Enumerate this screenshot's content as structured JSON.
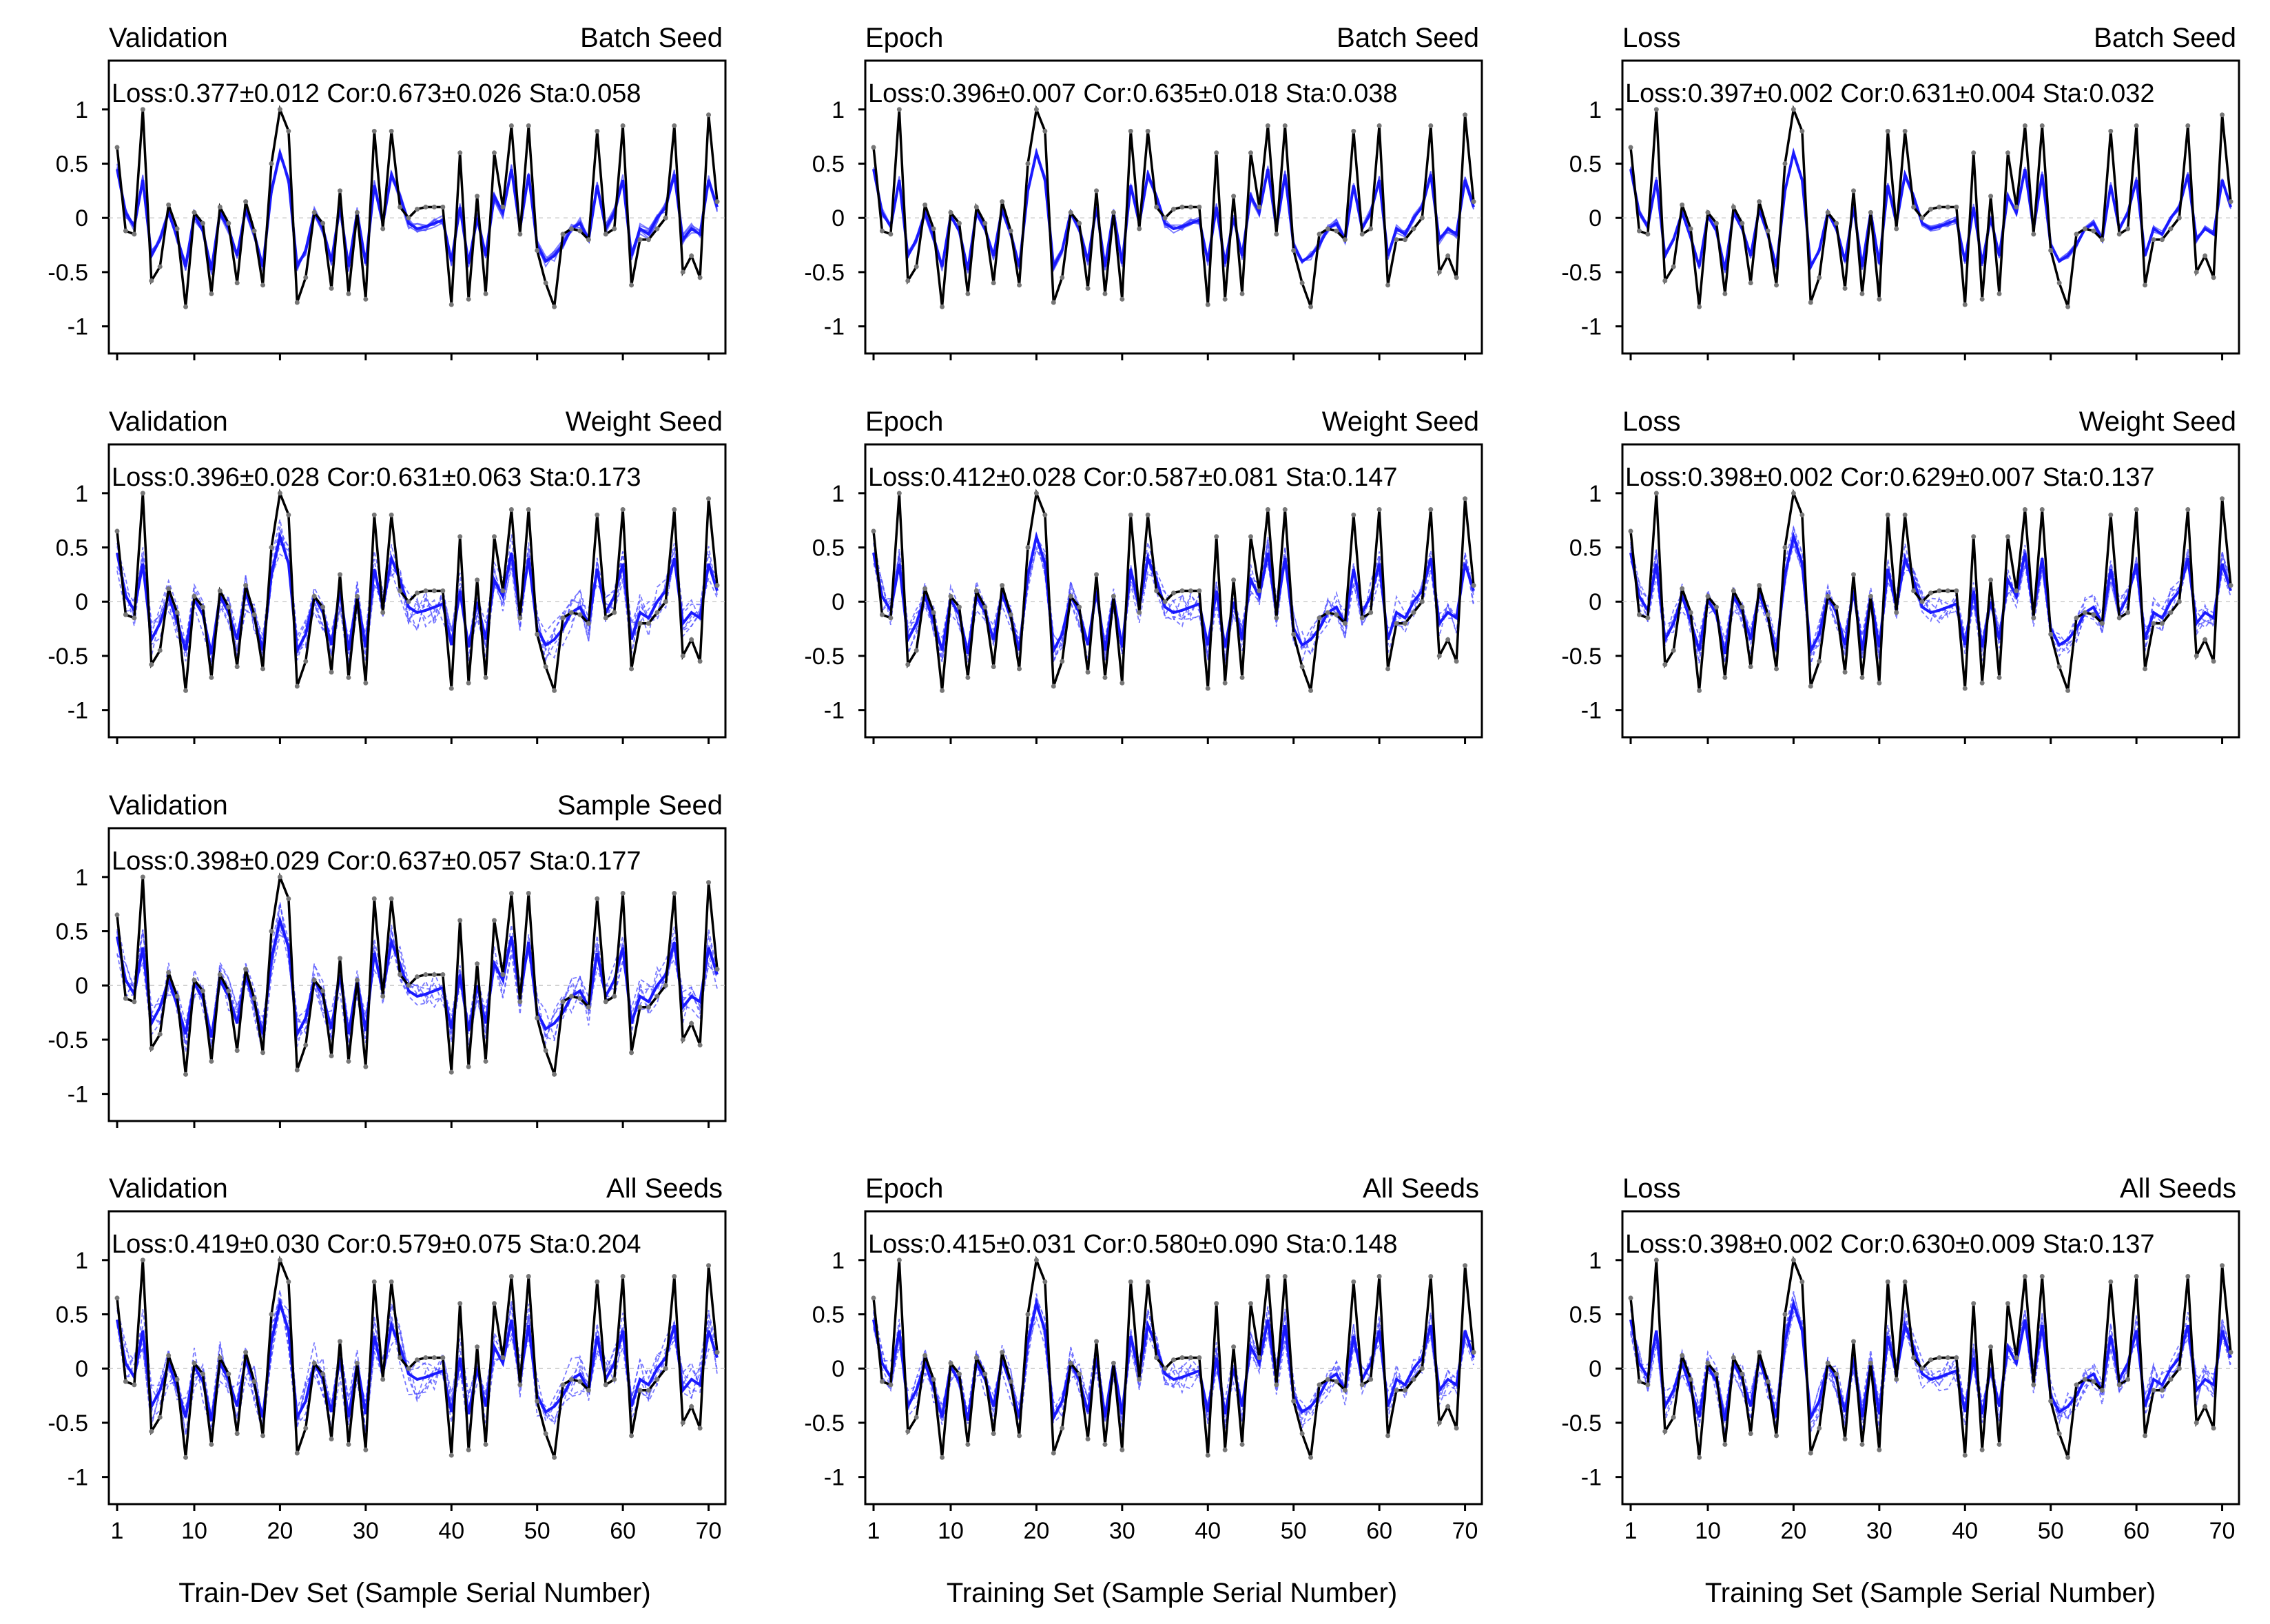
{
  "figure": {
    "xlabels": {
      "col0": "Train-Dev Set (Sample Serial Number)",
      "col1": "Training Set (Sample Serial Number)",
      "col2": "Training Set (Sample Serial Number)"
    }
  },
  "axes": {
    "x_ticks": [
      "1",
      "10",
      "20",
      "30",
      "40",
      "50",
      "60",
      "70"
    ],
    "y_ticks": [
      "1",
      "0.5",
      "0",
      "-0.5",
      "-1"
    ]
  },
  "colors": {
    "target": "#000000",
    "mean": "#1a1aff",
    "runs": "#4d4dff"
  },
  "chart_data": [
    {
      "type": "line",
      "row": 0,
      "col": 0,
      "title_left": "Validation",
      "title_right": "Batch Seed",
      "stats": "Loss:0.377±0.012 Cor:0.673±0.026 Sta:0.058",
      "spread": 0.05,
      "dashed_runs": false,
      "xlim": [
        1,
        71
      ],
      "ylim": [
        -1.25,
        1.45
      ]
    },
    {
      "type": "line",
      "row": 0,
      "col": 1,
      "title_left": "Epoch",
      "title_right": "Batch Seed",
      "stats": "Loss:0.396±0.007 Cor:0.635±0.018 Sta:0.038",
      "spread": 0.04,
      "dashed_runs": false,
      "xlim": [
        1,
        71
      ],
      "ylim": [
        -1.25,
        1.45
      ]
    },
    {
      "type": "line",
      "row": 0,
      "col": 2,
      "title_left": "Loss",
      "title_right": "Batch Seed",
      "stats": "Loss:0.397±0.002 Cor:0.631±0.004 Sta:0.032",
      "spread": 0.03,
      "dashed_runs": false,
      "xlim": [
        1,
        71
      ],
      "ylim": [
        -1.25,
        1.45
      ]
    },
    {
      "type": "line",
      "row": 1,
      "col": 0,
      "title_left": "Validation",
      "title_right": "Weight Seed",
      "stats": "Loss:0.396±0.028 Cor:0.631±0.063 Sta:0.173",
      "spread": 0.17,
      "dashed_runs": true,
      "xlim": [
        1,
        71
      ],
      "ylim": [
        -1.25,
        1.45
      ]
    },
    {
      "type": "line",
      "row": 1,
      "col": 1,
      "title_left": "Epoch",
      "title_right": "Weight Seed",
      "stats": "Loss:0.412±0.028 Cor:0.587±0.081 Sta:0.147",
      "spread": 0.15,
      "dashed_runs": true,
      "xlim": [
        1,
        71
      ],
      "ylim": [
        -1.25,
        1.45
      ]
    },
    {
      "type": "line",
      "row": 1,
      "col": 2,
      "title_left": "Loss",
      "title_right": "Weight Seed",
      "stats": "Loss:0.398±0.002 Cor:0.629±0.007 Sta:0.137",
      "spread": 0.14,
      "dashed_runs": true,
      "xlim": [
        1,
        71
      ],
      "ylim": [
        -1.25,
        1.45
      ]
    },
    {
      "type": "line",
      "row": 2,
      "col": 0,
      "title_left": "Validation",
      "title_right": "Sample Seed",
      "stats": "Loss:0.398±0.029 Cor:0.637±0.057 Sta:0.177",
      "spread": 0.17,
      "dashed_runs": true,
      "xlim": [
        1,
        71
      ],
      "ylim": [
        -1.25,
        1.45
      ]
    },
    {
      "type": "line",
      "row": 3,
      "col": 0,
      "title_left": "Validation",
      "title_right": "All Seeds",
      "stats": "Loss:0.419±0.030 Cor:0.579±0.075 Sta:0.204",
      "spread": 0.2,
      "dashed_runs": true,
      "xlim": [
        1,
        71
      ],
      "ylim": [
        -1.25,
        1.45
      ]
    },
    {
      "type": "line",
      "row": 3,
      "col": 1,
      "title_left": "Epoch",
      "title_right": "All Seeds",
      "stats": "Loss:0.415±0.031 Cor:0.580±0.090 Sta:0.148",
      "spread": 0.15,
      "dashed_runs": true,
      "xlim": [
        1,
        71
      ],
      "ylim": [
        -1.25,
        1.45
      ]
    },
    {
      "type": "line",
      "row": 3,
      "col": 2,
      "title_left": "Loss",
      "title_right": "All Seeds",
      "stats": "Loss:0.398±0.002 Cor:0.630±0.009 Sta:0.137",
      "spread": 0.14,
      "dashed_runs": true,
      "xlim": [
        1,
        71
      ],
      "ylim": [
        -1.25,
        1.45
      ]
    }
  ],
  "series": {
    "target": [
      0.65,
      -0.12,
      -0.15,
      1.0,
      -0.58,
      -0.45,
      0.12,
      -0.1,
      -0.82,
      0.05,
      -0.05,
      -0.7,
      0.1,
      -0.05,
      -0.6,
      0.15,
      -0.12,
      -0.62,
      0.5,
      1.0,
      0.8,
      -0.78,
      -0.55,
      0.05,
      -0.05,
      -0.65,
      0.25,
      -0.7,
      0.05,
      -0.75,
      0.8,
      -0.1,
      0.8,
      0.1,
      0.0,
      0.08,
      0.1,
      0.1,
      0.1,
      -0.8,
      0.6,
      -0.75,
      0.2,
      -0.7,
      0.6,
      0.1,
      0.85,
      -0.15,
      0.85,
      -0.3,
      -0.6,
      -0.82,
      -0.15,
      -0.1,
      -0.12,
      -0.2,
      0.8,
      -0.15,
      -0.1,
      0.85,
      -0.62,
      -0.2,
      -0.2,
      -0.1,
      0.0,
      0.85,
      -0.5,
      -0.35,
      -0.55,
      0.95,
      0.15
    ],
    "mean": [
      0.45,
      0.05,
      -0.08,
      0.35,
      -0.35,
      -0.2,
      0.05,
      -0.18,
      -0.45,
      0.02,
      -0.12,
      -0.48,
      0.05,
      -0.1,
      -0.35,
      0.08,
      -0.15,
      -0.45,
      0.25,
      0.6,
      0.35,
      -0.45,
      -0.3,
      0.05,
      -0.1,
      -0.4,
      0.1,
      -0.45,
      0.05,
      -0.42,
      0.3,
      -0.05,
      0.4,
      0.2,
      -0.05,
      -0.1,
      -0.08,
      -0.05,
      -0.02,
      -0.4,
      0.1,
      -0.42,
      0.0,
      -0.35,
      0.2,
      0.05,
      0.45,
      -0.1,
      0.4,
      -0.25,
      -0.4,
      -0.35,
      -0.25,
      -0.1,
      -0.05,
      -0.2,
      0.3,
      -0.1,
      0.05,
      0.35,
      -0.35,
      -0.1,
      -0.15,
      0.0,
      0.1,
      0.4,
      -0.2,
      -0.1,
      -0.15,
      0.35,
      0.1
    ]
  }
}
